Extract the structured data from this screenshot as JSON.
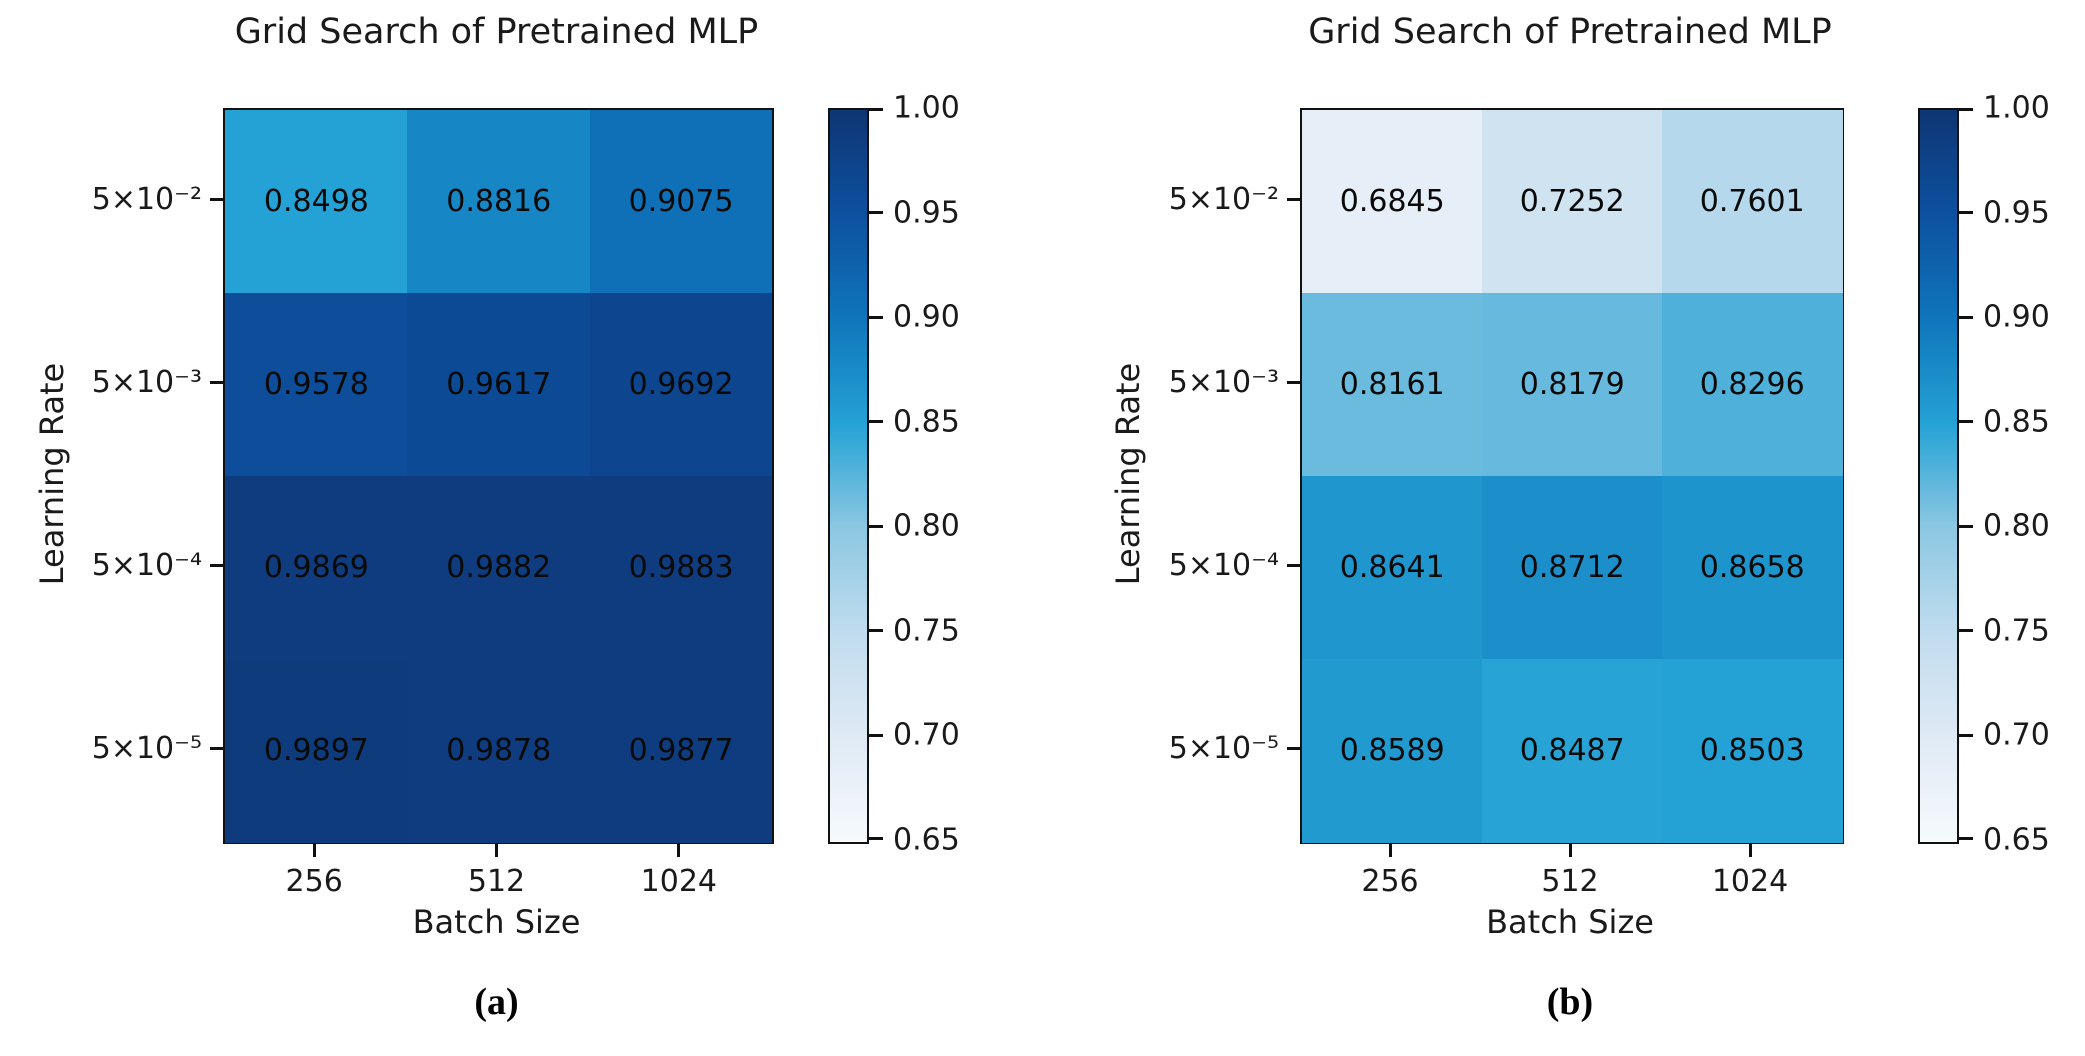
{
  "colormap": {
    "name": "Blues",
    "vmin": 0.65,
    "vmax": 1.0,
    "stops": [
      {
        "value": 0.65,
        "color": "#f6fafd"
      },
      {
        "value": 0.7,
        "color": "#dfeaf5"
      },
      {
        "value": 0.75,
        "color": "#c0dcee"
      },
      {
        "value": 0.8,
        "color": "#8cc7e2"
      },
      {
        "value": 0.85,
        "color": "#25a2d5"
      },
      {
        "value": 0.9,
        "color": "#0f76bb"
      },
      {
        "value": 0.95,
        "color": "#0d51a0"
      },
      {
        "value": 1.0,
        "color": "#0e3573"
      }
    ]
  },
  "chart_data": [
    {
      "type": "heatmap",
      "id": "a",
      "title": "Grid Search of Pretrained MLP",
      "caption": "(a)",
      "xlabel": "Batch Size",
      "ylabel": "Learning Rate",
      "x_categories": [
        "256",
        "512",
        "1024"
      ],
      "y_categories": [
        "5×10⁻²",
        "5×10⁻³",
        "5×10⁻⁴",
        "5×10⁻⁵"
      ],
      "values": [
        [
          0.8498,
          0.8816,
          0.9075
        ],
        [
          0.9578,
          0.9617,
          0.9692
        ],
        [
          0.9869,
          0.9882,
          0.9883
        ],
        [
          0.9897,
          0.9878,
          0.9877
        ]
      ],
      "value_format_decimals": 4,
      "colorbar_ticks": [
        "1.00",
        "0.95",
        "0.90",
        "0.85",
        "0.80",
        "0.75",
        "0.70",
        "0.65"
      ],
      "legend_position": "right",
      "grid": false
    },
    {
      "type": "heatmap",
      "id": "b",
      "title": "Grid Search of Pretrained MLP",
      "caption": "(b)",
      "xlabel": "Batch Size",
      "ylabel": "Learning Rate",
      "x_categories": [
        "256",
        "512",
        "1024"
      ],
      "y_categories": [
        "5×10⁻²",
        "5×10⁻³",
        "5×10⁻⁴",
        "5×10⁻⁵"
      ],
      "values": [
        [
          0.6845,
          0.7252,
          0.7601
        ],
        [
          0.8161,
          0.8179,
          0.8296
        ],
        [
          0.8641,
          0.8712,
          0.8658
        ],
        [
          0.8589,
          0.8487,
          0.8503
        ]
      ],
      "value_format_decimals": 4,
      "colorbar_ticks": [
        "1.00",
        "0.95",
        "0.90",
        "0.85",
        "0.80",
        "0.75",
        "0.70",
        "0.65"
      ],
      "legend_position": "right",
      "grid": false
    }
  ]
}
